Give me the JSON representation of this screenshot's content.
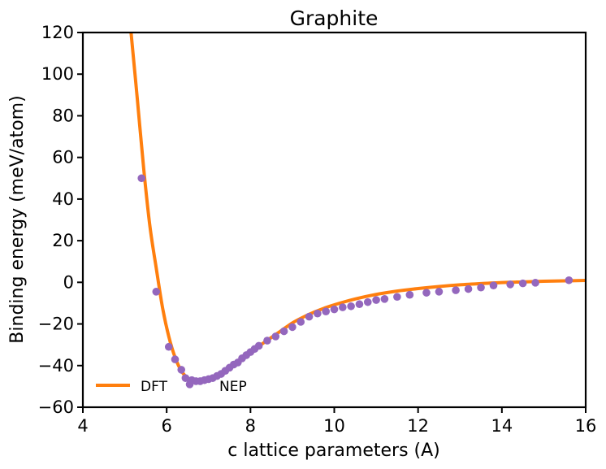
{
  "chart_data": {
    "type": "line",
    "title": "Graphite",
    "xlabel": "c lattice parameters (A)",
    "ylabel": "Binding energy (meV/atom)",
    "xlim": [
      4,
      16
    ],
    "ylim": [
      -60,
      120
    ],
    "xticks": [
      "4",
      "6",
      "8",
      "10",
      "12",
      "14",
      "16"
    ],
    "yticks": [
      "−60",
      "−40",
      "−20",
      "0",
      "20",
      "40",
      "60",
      "80",
      "100",
      "120"
    ],
    "grid": false,
    "legend": "lower-left",
    "series": [
      {
        "name": "DFT",
        "style": "line",
        "color": "#ff7f0e",
        "x": [
          5.15,
          5.3,
          5.45,
          5.6,
          5.75,
          5.9,
          6.05,
          6.2,
          6.35,
          6.5,
          6.65,
          6.8,
          7.0,
          7.2,
          7.4,
          7.6,
          7.8,
          8.0,
          8.25,
          8.5,
          8.75,
          9.0,
          9.25,
          9.5,
          9.75,
          10.0,
          10.5,
          11.0,
          11.5,
          12.0,
          12.5,
          13.0,
          13.5,
          14.0,
          14.5,
          15.0,
          15.5,
          16.0
        ],
        "y": [
          120,
          88,
          55,
          27,
          7,
          -12,
          -26,
          -36,
          -42.5,
          -46,
          -47.5,
          -47.8,
          -47,
          -45.5,
          -43,
          -40,
          -37,
          -34,
          -30,
          -26.5,
          -23,
          -19.5,
          -16.8,
          -14.5,
          -12.5,
          -10.8,
          -8.0,
          -5.8,
          -4.2,
          -3.0,
          -2.0,
          -1.2,
          -0.6,
          -0.1,
          0.2,
          0.5,
          0.7,
          0.9
        ]
      },
      {
        "name": "NEP",
        "style": "scatter",
        "color": "#9467bd",
        "x": [
          5.4,
          5.75,
          6.05,
          6.2,
          6.35,
          6.45,
          6.55,
          6.6,
          6.7,
          6.8,
          6.9,
          7.0,
          7.1,
          7.2,
          7.3,
          7.4,
          7.5,
          7.6,
          7.7,
          7.8,
          7.9,
          8.0,
          8.1,
          8.2,
          8.4,
          8.6,
          8.8,
          9.0,
          9.2,
          9.4,
          9.6,
          9.8,
          10.0,
          10.2,
          10.4,
          10.6,
          10.8,
          11.0,
          11.2,
          11.5,
          11.8,
          12.2,
          12.5,
          12.9,
          13.2,
          13.5,
          13.8,
          14.2,
          14.5,
          14.8,
          15.6
        ],
        "y": [
          50,
          -4.5,
          -31,
          -37,
          -42,
          -46,
          -49,
          -47,
          -47.5,
          -47.5,
          -47,
          -46.5,
          -46,
          -45,
          -44,
          -42.5,
          -41,
          -39.5,
          -38.5,
          -36.5,
          -35,
          -33.5,
          -32,
          -30.5,
          -28,
          -26,
          -23.5,
          -21.5,
          -19,
          -16.5,
          -15,
          -14,
          -13,
          -12,
          -11.5,
          -10.5,
          -9.5,
          -8.5,
          -8,
          -7,
          -6,
          -5,
          -4.5,
          -3.8,
          -3.2,
          -2.5,
          -1.5,
          -1.0,
          -0.5,
          -0.2,
          1.0
        ]
      }
    ]
  }
}
